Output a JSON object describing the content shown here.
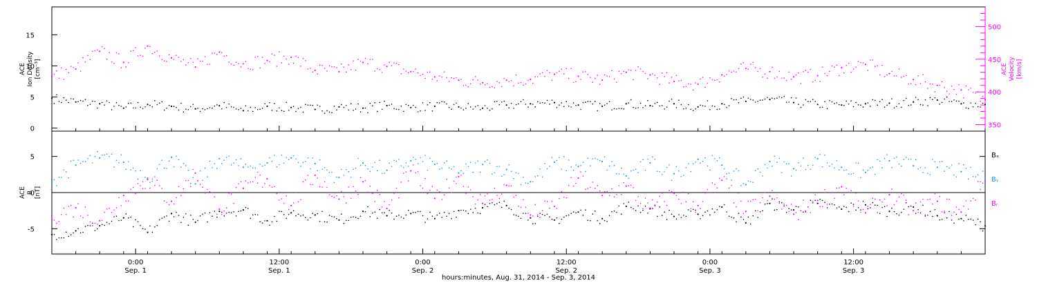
{
  "chart_data": [
    {
      "type": "scatter",
      "title": "",
      "x_range": [
        "2014-08-31T17:00",
        "2014-09-03T23:00"
      ],
      "x_ticks": [
        {
          "t": "2014-09-01T00:00",
          "time": "0:00",
          "date": "Sep. 1"
        },
        {
          "t": "2014-09-01T12:00",
          "time": "12:00",
          "date": "Sep. 1"
        },
        {
          "t": "2014-09-02T00:00",
          "time": "0:00",
          "date": "Sep. 2"
        },
        {
          "t": "2014-09-02T12:00",
          "time": "12:00",
          "date": "Sep. 2"
        },
        {
          "t": "2014-09-03T00:00",
          "time": "0:00",
          "date": "Sep. 3"
        },
        {
          "t": "2014-09-03T12:00",
          "time": "12:00",
          "date": "Sep. 3"
        }
      ],
      "xlabel": "hours:minutes, Aug. 31, 2014 - Sep.  3, 2014",
      "y_left": {
        "label_lines": [
          "ACE",
          "Ion Density",
          "[cm⁻³]"
        ],
        "ylim": [
          -0.5,
          19.5
        ],
        "ticks": [
          0,
          5,
          10,
          15
        ]
      },
      "y_right": {
        "label_lines": [
          "ACE",
          "Velocity",
          "[km/s]"
        ],
        "ylim": [
          340,
          530
        ],
        "ticks": [
          350,
          400,
          450,
          500
        ],
        "color": "#ff00ff"
      },
      "series": [
        {
          "color": "#000000",
          "axis": "left",
          "values": [
            [
              0,
              4.8
            ],
            [
              2,
              4.2
            ],
            [
              4,
              3.9
            ],
            [
              6,
              3.2
            ],
            [
              8,
              3.8
            ],
            [
              10,
              3.5
            ],
            [
              12,
              3.1
            ],
            [
              14,
              3.6
            ],
            [
              16,
              2.8
            ],
            [
              18,
              3.5
            ],
            [
              20,
              3.3
            ],
            [
              22,
              3.0
            ],
            [
              24,
              3.4
            ],
            [
              26,
              3.2
            ],
            [
              28,
              3.6
            ],
            [
              30,
              3.3
            ],
            [
              32,
              3.5
            ],
            [
              34,
              3.4
            ],
            [
              36,
              3.2
            ],
            [
              38,
              3.7
            ],
            [
              40,
              3.9
            ],
            [
              42,
              4.1
            ],
            [
              44,
              3.7
            ],
            [
              46,
              3.5
            ],
            [
              48,
              3.9
            ],
            [
              50,
              3.6
            ],
            [
              52,
              3.9
            ],
            [
              54,
              3.4
            ],
            [
              56,
              3.9
            ],
            [
              58,
              4.3
            ],
            [
              60,
              4.6
            ],
            [
              62,
              4.1
            ],
            [
              64,
              3.8
            ],
            [
              66,
              3.7
            ],
            [
              68,
              3.9
            ],
            [
              70,
              4.0
            ],
            [
              72,
              4.2
            ],
            [
              74,
              4.5
            ],
            [
              76,
              3.9
            ],
            [
              78,
              3.8
            ]
          ]
        },
        {
          "color": "#ff00ff",
          "axis": "right",
          "values": [
            [
              0,
              423
            ],
            [
              2,
              435
            ],
            [
              4,
              462
            ],
            [
              6,
              445
            ],
            [
              8,
              470
            ],
            [
              10,
              452
            ],
            [
              12,
              438
            ],
            [
              14,
              461
            ],
            [
              16,
              443
            ],
            [
              18,
              448
            ],
            [
              20,
              453
            ],
            [
              22,
              433
            ],
            [
              24,
              431
            ],
            [
              26,
              445
            ],
            [
              28,
              439
            ],
            [
              30,
              431
            ],
            [
              32,
              423
            ],
            [
              34,
              418
            ],
            [
              36,
              414
            ],
            [
              38,
              418
            ],
            [
              40,
              419
            ],
            [
              42,
              427
            ],
            [
              44,
              424
            ],
            [
              46,
              418
            ],
            [
              48,
              430
            ],
            [
              50,
              426
            ],
            [
              52,
              416
            ],
            [
              54,
              412
            ],
            [
              56,
              426
            ],
            [
              58,
              436
            ],
            [
              60,
              431
            ],
            [
              62,
              423
            ],
            [
              64,
              425
            ],
            [
              66,
              437
            ],
            [
              68,
              442
            ],
            [
              70,
              428
            ],
            [
              72,
              419
            ],
            [
              74,
              410
            ],
            [
              76,
              403
            ],
            [
              78,
              388
            ]
          ]
        }
      ]
    },
    {
      "type": "scatter",
      "title": "",
      "ylabel_lines": [
        "ACE",
        "B",
        "[nT]"
      ],
      "ylim": [
        -8.5,
        8.5
      ],
      "y_ticks": [
        -5,
        0,
        5
      ],
      "zero_line": true,
      "series": [
        {
          "name": "Bₓ",
          "color": "#000000",
          "values": [
            [
              0,
              -5.8
            ],
            [
              2,
              -5.3
            ],
            [
              4,
              -4.6
            ],
            [
              6,
              -3.5
            ],
            [
              8,
              -5.5
            ],
            [
              10,
              -2.9
            ],
            [
              12,
              -4.1
            ],
            [
              14,
              -2.6
            ],
            [
              16,
              -2.4
            ],
            [
              18,
              -3.9
            ],
            [
              20,
              -2.8
            ],
            [
              22,
              -3.1
            ],
            [
              24,
              -3.8
            ],
            [
              26,
              -2.6
            ],
            [
              28,
              -3.2
            ],
            [
              30,
              -2.9
            ],
            [
              32,
              -3.6
            ],
            [
              34,
              -2.5
            ],
            [
              36,
              -2.1
            ],
            [
              38,
              -1.8
            ],
            [
              40,
              -3.5
            ],
            [
              42,
              -3.8
            ],
            [
              44,
              -2.7
            ],
            [
              46,
              -3.6
            ],
            [
              48,
              -1.9
            ],
            [
              50,
              -2.2
            ],
            [
              52,
              -3.3
            ],
            [
              54,
              -3.0
            ],
            [
              56,
              -2.0
            ],
            [
              58,
              -4.2
            ],
            [
              60,
              -1.5
            ],
            [
              62,
              -2.4
            ],
            [
              64,
              -1.5
            ],
            [
              66,
              -2.3
            ],
            [
              68,
              -1.7
            ],
            [
              70,
              -2.6
            ],
            [
              72,
              -2.0
            ],
            [
              74,
              -3.2
            ],
            [
              76,
              -3.6
            ],
            [
              78,
              -4.6
            ]
          ]
        },
        {
          "name": "Bᵧ",
          "color": "#1e90ff",
          "values": [
            [
              0,
              1.5
            ],
            [
              2,
              3.8
            ],
            [
              4,
              4.8
            ],
            [
              6,
              4.2
            ],
            [
              8,
              2.0
            ],
            [
              10,
              4.9
            ],
            [
              12,
              1.2
            ],
            [
              14,
              4.7
            ],
            [
              16,
              3.5
            ],
            [
              18,
              4.1
            ],
            [
              20,
              4.8
            ],
            [
              22,
              4.0
            ],
            [
              24,
              2.1
            ],
            [
              26,
              4.1
            ],
            [
              28,
              3.1
            ],
            [
              30,
              4.4
            ],
            [
              32,
              3.9
            ],
            [
              34,
              2.7
            ],
            [
              36,
              3.9
            ],
            [
              38,
              3.2
            ],
            [
              40,
              1.5
            ],
            [
              42,
              4.2
            ],
            [
              44,
              3.6
            ],
            [
              46,
              4.3
            ],
            [
              48,
              2.3
            ],
            [
              50,
              4.1
            ],
            [
              52,
              2.6
            ],
            [
              54,
              4.6
            ],
            [
              56,
              3.8
            ],
            [
              58,
              1.1
            ],
            [
              60,
              4.3
            ],
            [
              62,
              3.3
            ],
            [
              64,
              4.7
            ],
            [
              66,
              3.5
            ],
            [
              68,
              2.8
            ],
            [
              70,
              4.4
            ],
            [
              72,
              3.7
            ],
            [
              74,
              3.5
            ],
            [
              76,
              2.9
            ],
            [
              78,
              1.8
            ]
          ]
        },
        {
          "name": "Bᵣ",
          "color": "#ff00ff",
          "values": [
            [
              0,
              -3.2
            ],
            [
              2,
              -2.1
            ],
            [
              4,
              -3.9
            ],
            [
              6,
              -0.4
            ],
            [
              8,
              1.8
            ],
            [
              10,
              -1.2
            ],
            [
              12,
              2.7
            ],
            [
              14,
              -2.3
            ],
            [
              16,
              0.6
            ],
            [
              18,
              1.9
            ],
            [
              20,
              -1.8
            ],
            [
              22,
              2.4
            ],
            [
              24,
              -0.9
            ],
            [
              26,
              1.5
            ],
            [
              28,
              -2.2
            ],
            [
              30,
              3.0
            ],
            [
              32,
              -0.8
            ],
            [
              34,
              2.2
            ],
            [
              36,
              -1.5
            ],
            [
              38,
              1.0
            ],
            [
              40,
              -3.1
            ],
            [
              42,
              -1.9
            ],
            [
              44,
              2.0
            ],
            [
              46,
              -0.4
            ],
            [
              48,
              0.9
            ],
            [
              50,
              -2.3
            ],
            [
              52,
              -0.1
            ],
            [
              54,
              -1.8
            ],
            [
              56,
              1.7
            ],
            [
              58,
              -2.6
            ],
            [
              60,
              -0.5
            ],
            [
              62,
              -3.0
            ],
            [
              64,
              -1.1
            ],
            [
              66,
              0.8
            ],
            [
              68,
              -2.8
            ],
            [
              70,
              -0.3
            ],
            [
              72,
              -2.5
            ],
            [
              74,
              -1.2
            ],
            [
              76,
              -2.7
            ],
            [
              78,
              1.6
            ]
          ]
        }
      ],
      "legend_position": "right"
    }
  ]
}
